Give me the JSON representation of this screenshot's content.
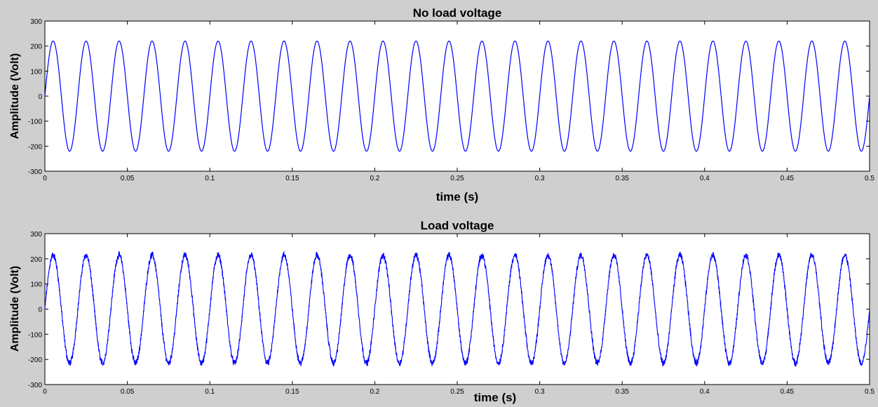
{
  "chart_data": [
    {
      "type": "line",
      "title": "No load voltage",
      "xlabel": "time (s)",
      "ylabel": "Amplitude (Volt)",
      "xlim": [
        0,
        0.5
      ],
      "ylim": [
        -300,
        300
      ],
      "xticks": [
        "0",
        "0.05",
        "0.1",
        "0.15",
        "0.2",
        "0.25",
        "0.3",
        "0.35",
        "0.4",
        "0.45",
        "0.5"
      ],
      "yticks": [
        "300",
        "200",
        "100",
        "0",
        "-100",
        "-200",
        "-300"
      ],
      "grid": false,
      "series": [
        {
          "color": "#0000ff",
          "waveform": "sine",
          "amplitude": 220,
          "frequency_hz": 50,
          "noise_amplitude": 0,
          "t_start": 0,
          "t_end": 0.5
        }
      ]
    },
    {
      "type": "line",
      "title": "Load voltage",
      "xlabel": "time (s)",
      "ylabel": "Amplitude (Volt)",
      "xlim": [
        0,
        0.5
      ],
      "ylim": [
        -300,
        300
      ],
      "xticks": [
        "0",
        "0.05",
        "0.1",
        "0.15",
        "0.2",
        "0.25",
        "0.3",
        "0.35",
        "0.4",
        "0.45",
        "0.5"
      ],
      "yticks": [
        "300",
        "200",
        "100",
        "0",
        "-100",
        "-200",
        "-300"
      ],
      "grid": false,
      "series": [
        {
          "color": "#0000ff",
          "waveform": "sine",
          "amplitude": 215,
          "frequency_hz": 50,
          "noise_amplitude": 20,
          "t_start": 0,
          "t_end": 0.5
        }
      ]
    }
  ]
}
